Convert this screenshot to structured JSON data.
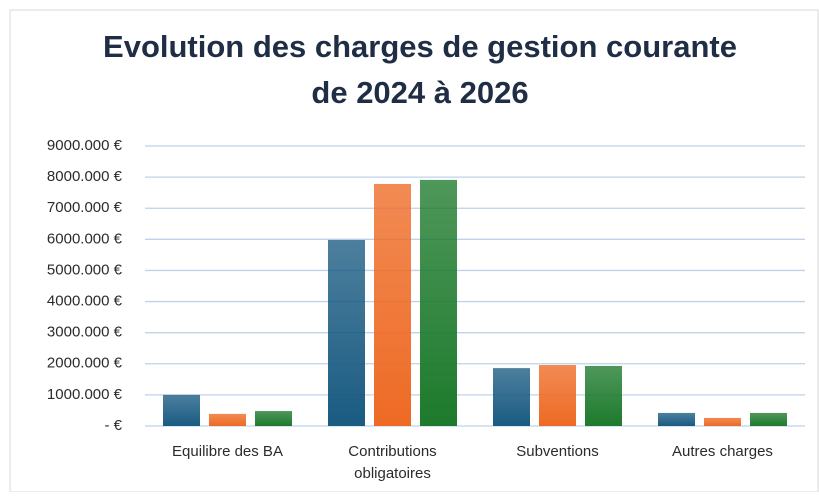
{
  "chart_data": {
    "type": "bar",
    "title": "Evolution des charges de gestion courante de 2024 à 2026",
    "categories": [
      "Equilibre des BA",
      "Contributions obligatoires",
      "Subventions",
      "Autres charges"
    ],
    "series": [
      {
        "color": "#1a5b82",
        "values": [
          1000,
          5980,
          1860,
          420
        ]
      },
      {
        "color": "#ee6a24",
        "values": [
          390,
          7780,
          1960,
          260
        ]
      },
      {
        "color": "#1d7a2c",
        "values": [
          480,
          7910,
          1930,
          420
        ]
      }
    ],
    "ylim": [
      0,
      9000
    ],
    "yticks": [
      {
        "value": 0,
        "label": "- €"
      },
      {
        "value": 1000,
        "label": "1000.000 €"
      },
      {
        "value": 2000,
        "label": "2000.000 €"
      },
      {
        "value": 3000,
        "label": "3000.000 €"
      },
      {
        "value": 4000,
        "label": "4000.000 €"
      },
      {
        "value": 5000,
        "label": "5000.000 €"
      },
      {
        "value": 6000,
        "label": "6000.000 €"
      },
      {
        "value": 7000,
        "label": "7000.000 €"
      },
      {
        "value": 8000,
        "label": "8000.000 €"
      },
      {
        "value": 9000,
        "label": "9000.000 €"
      }
    ],
    "grid": true
  }
}
